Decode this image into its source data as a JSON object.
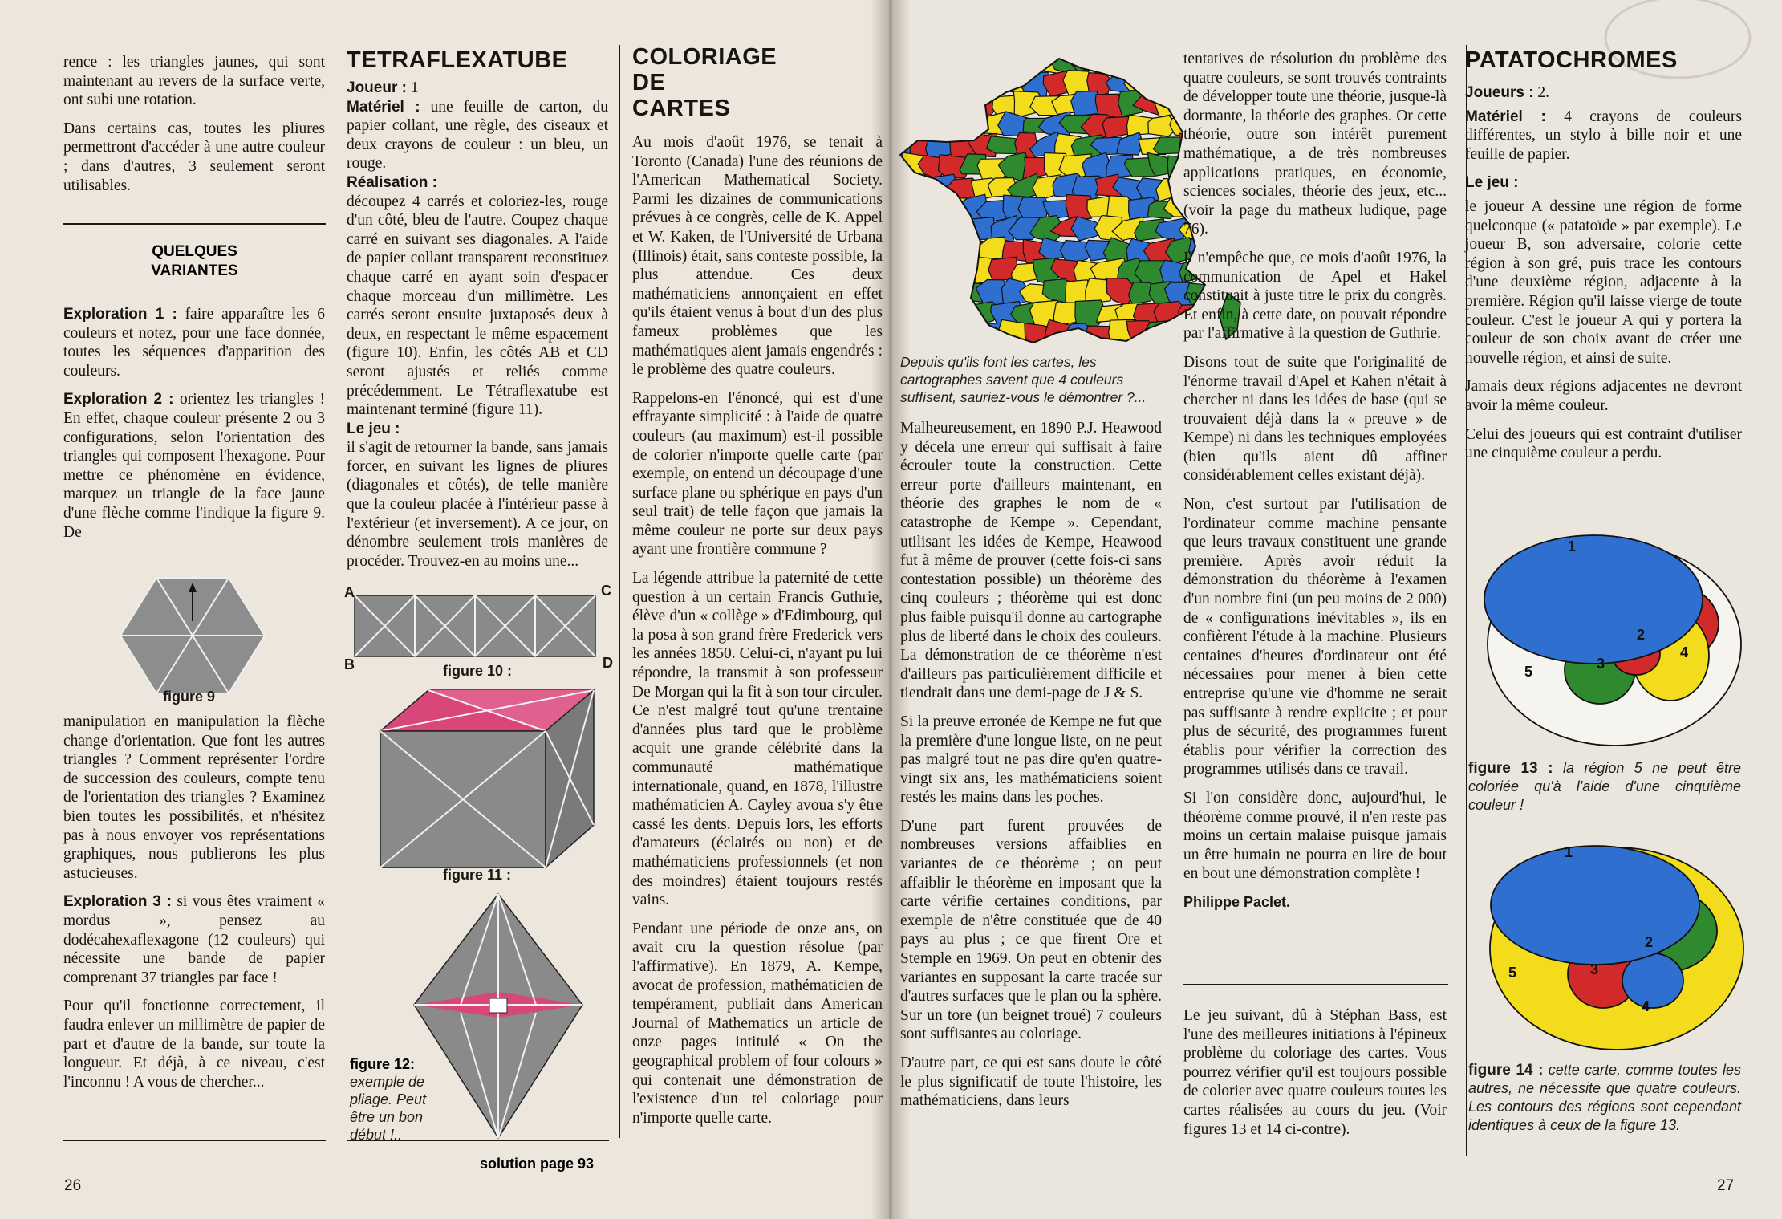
{
  "left_page": {
    "page_number": "26",
    "col1": {
      "p1": "rence : les triangles jaunes, qui sont maintenant au revers de la surface verte, ont subi une rotation.",
      "p2": "Dans certains cas, toutes les pliures permettront d'accéder à une autre couleur ; dans d'autres, 3 seulement seront utilisables.",
      "variants_heading_line1": "QUELQUES",
      "variants_heading_line2": "VARIANTES",
      "expl1_label": "Exploration 1 :",
      "expl1_text": " faire apparaître les 6 couleurs et notez, pour une face donnée, toutes les séquences d'apparition des couleurs.",
      "expl2_label": "Exploration 2 :",
      "expl2_text": " orientez les triangles ! En effet, chaque couleur présente 2 ou 3 configurations, selon l'orientation des triangles qui composent l'hexagone. Pour mettre ce phénomène en évidence, marquez un triangle de la face jaune d'une flèche comme l'indique la figure 9. De",
      "figure9_label": "figure 9",
      "p3": "manipulation en manipulation la flèche change d'orientation. Que font les autres triangles ? Comment représenter l'ordre de succession des couleurs, compte tenu de l'orientation des triangles ? Examinez bien toutes les possibilités, et n'hésitez pas à nous envoyer vos représentations graphiques, nous publierons les plus astucieuses.",
      "expl3_label": "Exploration 3 :",
      "expl3_text": " si vous êtes vraiment « mordus », pensez au dodécahexaflexagone (12 couleurs) qui nécessite une bande de papier comprenant 37 triangles par face !",
      "p4": "Pour qu'il fonctionne correctement, il faudra enlever un millimètre de papier de part et d'autre de la bande, sur toute la longueur. Et déjà, à ce niveau, c'est l'inconnu ! A vous de chercher..."
    },
    "col2": {
      "title": "TETRAFLEXATUBE",
      "players_label": "Joueur :",
      "players_value": " 1",
      "material_label": "Matériel :",
      "material_text": " une feuille de carton, du papier collant, une règle, des ciseaux et deux crayons de couleur : un bleu, un rouge.",
      "realisation_label": "Réalisation :",
      "realisation_text": "découpez 4 carrés et coloriez-les, rouge d'un côté, bleu de l'autre. Coupez chaque carré en suivant ses diagonales. A l'aide de papier collant transparent reconstituez chaque carré en ayant soin d'espacer chaque morceau d'un millimètre. Les carrés seront ensuite juxtaposés deux à deux, en respectant le même espacement (figure 10). Enfin, les côtés AB et CD seront ajustés et reliés comme précédemment. Le Tétraflexatube est maintenant terminé (figure 11).",
      "game_label": "Le jeu :",
      "game_text": "il s'agit de retourner la bande, sans jamais forcer, en suivant les lignes de pliures (diagonales et côtés), de telle manière que la couleur placée à l'intérieur passe à l'extérieur (et inversement). A ce jour, on dénombre seulement trois manières de procéder. Trouvez-en au moins une...",
      "corner_a": "A",
      "corner_b": "B",
      "corner_c": "C",
      "corner_d": "D",
      "figure10_label": "figure 10 :",
      "figure11_label": "figure 11 :",
      "figure12_label": "figure 12:",
      "figure12_caption": "exemple de pliage. Peut être un bon début !..",
      "solution": "solution page 93"
    },
    "col3": {
      "title_line1": "COLORIAGE",
      "title_line2": "DE",
      "title_line3": "CARTES",
      "p1": "Au mois d'août 1976, se tenait à Toronto (Canada) l'une des réunions de l'American Mathematical Society. Parmi les dizaines de communications prévues à ce congrès, celle de K. Appel et W. Kaken, de l'Université de Urbana (Illinois) était, sans conteste possible, la plus attendue. Ces deux mathématiciens annonçaient en effet qu'ils étaient venus à bout d'un des plus fameux problèmes que les mathématiques aient jamais engendrés : le problème des quatre couleurs.",
      "p2": "Rappelons-en l'énoncé, qui est d'une effrayante simplicité : à l'aide de quatre couleurs (au maximum) est-il possible de colorier n'importe quelle carte (par exemple, on entend un découpage d'une surface plane ou sphérique en pays d'un seul trait) de telle façon que jamais la même couleur ne porte sur deux pays ayant une frontière commune ?",
      "p3": "La légende attribue la paternité de cette question à un certain Francis Guthrie, élève d'un « collège » d'Edimbourg, qui la posa à son grand frère Frederick vers les années 1850. Celui-ci, n'ayant pu lui répondre, la transmit à son professeur De Morgan qui la fit à son tour circuler. Ce n'est malgré tout qu'une trentaine d'années plus tard que le problème acquit une grande célébrité dans la communauté mathématique internationale, quand, en 1878, l'illustre mathématicien A. Cayley avoua s'y être cassé les dents. Depuis lors, les efforts d'amateurs (éclairés ou non) et de mathématiciens professionnels (et non des moindres) étaient toujours restés vains.",
      "p4": "Pendant une période de onze ans, on avait cru la question résolue (par l'affirmative). En 1879, A. Kempe, avocat de profession, mathématicien de tempérament, publiait dans American Journal of Mathematics un article de onze pages intitulé « On the geographical problem of four colours » qui contenait une démonstration de l'existence d'un tel coloriage pour n'importe quelle carte."
    }
  },
  "right_page": {
    "page_number": "27",
    "map_caption": "Depuis qu'ils font les cartes, les cartographes savent que 4 couleurs suffisent, sauriez-vous le démontrer ?...",
    "col1": {
      "p1": "Malheureusement, en 1890 P.J. Heawood y décela une erreur qui suffisait à faire écrouler toute la construction. Cette erreur porte d'ailleurs maintenant, en théorie des graphes le nom de « catastrophe de Kempe ». Cependant, utilisant les idées de Kempe, Heawood fut à même de prouver (cette fois-ci sans contestation possible) un théorème des cinq couleurs ; théorème qui est donc plus faible puisqu'il donne au cartographe plus de liberté dans le choix des couleurs. La démonstration de ce théorème n'est d'ailleurs pas particulièrement difficile et tiendrait dans une demi-page de J & S.",
      "p2": "Si la preuve erronée de Kempe ne fut que la première d'une longue liste, on ne peut pas malgré tout ne pas dire qu'en quatre-vingt six ans, les mathématiciens soient restés les mains dans les poches.",
      "p3": "D'une part furent prouvées de nombreuses versions affaiblies en variantes de ce théorème ; on peut affaiblir le théorème en imposant que la carte vérifie certaines conditions, par exemple de n'être constituée que de 40 pays au plus ; ce que firent Ore et Stemple en 1969. On peut en obtenir des variantes en supposant la carte tracée sur d'autres surfaces que le plan ou la sphère. Sur un tore (un beignet troué) 7 couleurs sont suffisantes au coloriage.",
      "p4": "D'autre part, ce qui est sans doute le côté le plus significatif de toute l'histoire, les mathématiciens, dans leurs"
    },
    "col2": {
      "p1": "tentatives de résolution du problème des quatre couleurs, se sont trouvés contraints de développer toute une théorie, jusque-là dormante, la théorie des graphes. Or cette théorie, outre son intérêt purement mathématique, a de très nombreuses applications pratiques, en économie, sciences sociales, théorie des jeux, etc... (voir la page du matheux ludique, page 76).",
      "p2": "Il n'empêche que, ce mois d'août 1976, la communication de Apel et Hakel constituait à juste titre le prix du congrès. Et enfin, à cette date, on pouvait répondre par l'affirmative à la question de Guthrie.",
      "p3": "Disons tout de suite que l'originalité de l'énorme travail d'Apel et Kahen n'était à chercher ni dans les idées de base (qui se trouvaient déjà dans la « preuve » de Kempe) ni dans les techniques employées (bien qu'ils aient dû affiner considérablement celles existant déjà).",
      "p4": "Non, c'est surtout par l'utilisation de l'ordinateur comme machine pensante que leurs travaux constituent une grande première. Après avoir réduit la démonstration du théorème à l'examen d'un nombre fini (un peu moins de 2 000) de « configurations inévitables », ils en confièrent l'étude à la machine. Plusieurs centaines d'heures d'ordinateur ont été nécessaires pour mener à bien cette entreprise qu'une vie d'homme ne serait pas suffisante à rendre explicite ; et pour plus de sécurité, des programmes furent établis pour vérifier la correction des programmes utilisés dans ce travail.",
      "p5": "Si l'on considère donc, aujourd'hui, le théorème comme prouvé, il n'en reste pas moins un certain malaise puisque jamais un être humain ne pourra en lire de bout en bout une démonstration complète !",
      "signature": "Philippe Paclet.",
      "p6": "Le jeu suivant, dû à Stéphan Bass, est l'une des meilleures initiations à l'épineux problème du coloriage des cartes. Vous pourrez vérifier qu'il est toujours possible de colorier avec quatre couleurs toutes les cartes réalisées au cours du jeu. (Voir figures 13 et 14 ci-contre)."
    },
    "col3": {
      "title": "PATATOCHROMES",
      "players_label": "Joueurs :",
      "players_value": " 2.",
      "material_label": "Matériel :",
      "material_text": " 4 crayons de couleurs différentes, un stylo à bille noir et une feuille de papier.",
      "game_label": "Le jeu :",
      "game_text": "le joueur A dessine une région de forme quelconque (« patatoïde » par exemple). Le joueur B, son adversaire, colorie cette région à son gré, puis trace les contours d'une deuxième région, adjacente à la première. Région qu'il laisse vierge de toute couleur. C'est le joueur A qui y portera la couleur de son choix avant de créer une nouvelle région, et ainsi de suite.",
      "rule1": "Jamais deux régions adjacentes ne devront avoir la même couleur.",
      "rule2": "Celui des joueurs qui est contraint d'utiliser une cinquième couleur a perdu.",
      "fig13_label": "figure 13 :",
      "fig13_caption": " la région 5 ne peut être coloriée qu'à l'aide d'une cinquième couleur !",
      "fig14_label": "figure 14 :",
      "fig14_caption": " cette carte, comme toutes les autres, ne nécessite que quatre couleurs. Les contours des régions sont cependant identiques à ceux de la figure 13.",
      "region_1": "1",
      "region_2": "2",
      "region_3": "3",
      "region_4": "4",
      "region_5": "5"
    }
  },
  "colors": {
    "paper": "#ece6dc",
    "ink": "#181410",
    "blue": "#2f6fd0",
    "red": "#d22a2a",
    "green": "#2f8a2f",
    "yellow": "#f2dc1c",
    "gray": "#8a8a8a",
    "magenta": "#d83a70"
  }
}
